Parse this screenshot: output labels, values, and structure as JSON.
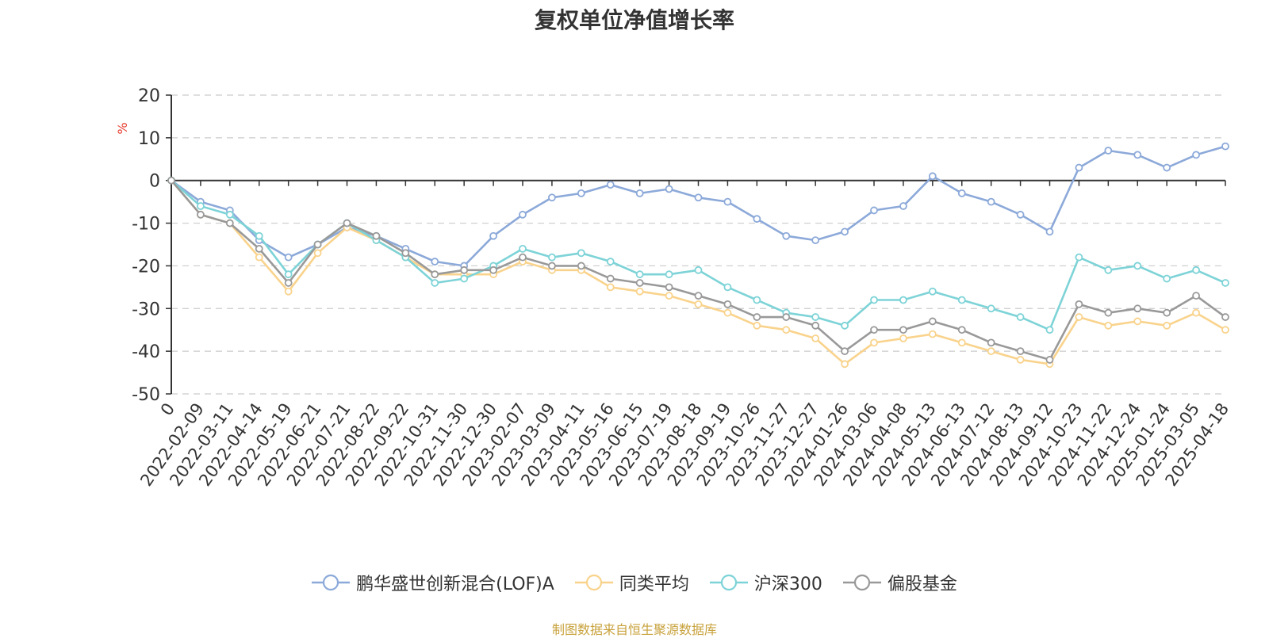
{
  "title": "复权单位净值增长率",
  "source_note": "制图数据来自恒生聚源数据库",
  "chart_data": {
    "type": "line",
    "title": "复权单位净值增长率",
    "ylabel": "%",
    "ylim": [
      -50,
      20
    ],
    "yticks": [
      20,
      10,
      0,
      -10,
      -20,
      -30,
      -40,
      -50
    ],
    "grid": true,
    "legend_position": "bottom",
    "x_ticks": [
      "0",
      "2022-02-09",
      "2022-03-11",
      "2022-04-14",
      "2022-05-19",
      "2022-06-21",
      "2022-07-21",
      "2022-08-22",
      "2022-09-22",
      "2022-10-31",
      "2022-11-30",
      "2022-12-30",
      "2023-02-07",
      "2023-03-09",
      "2023-04-11",
      "2023-05-16",
      "2023-06-15",
      "2023-07-19",
      "2023-08-18",
      "2023-09-19",
      "2023-10-26",
      "2023-11-27",
      "2023-12-27",
      "2024-01-26",
      "2024-03-06",
      "2024-04-08",
      "2024-05-13",
      "2024-06-13",
      "2024-07-12",
      "2024-08-13",
      "2024-09-12",
      "2024-10-23",
      "2024-11-22",
      "2024-12-24",
      "2025-01-24",
      "2025-03-05",
      "2025-04-18"
    ],
    "series": [
      {
        "name": "鹏华盛世创新混合(LOF)A",
        "color": "#8ca9d9",
        "values": [
          0,
          -5,
          -7,
          -14,
          -18,
          -15,
          -11,
          -13,
          -16,
          -19,
          -20,
          -13,
          -8,
          -4,
          -3,
          -1,
          -3,
          -2,
          -4,
          -5,
          -9,
          -13,
          -14,
          -12,
          -7,
          -6,
          1,
          -3,
          -5,
          -8,
          -12,
          3,
          7,
          6,
          3,
          6,
          8
        ]
      },
      {
        "name": "同类平均",
        "color": "#f9d38c",
        "values": [
          0,
          -8,
          -10,
          -18,
          -26,
          -17,
          -11,
          -14,
          -18,
          -22,
          -22,
          -22,
          -19,
          -21,
          -21,
          -25,
          -26,
          -27,
          -29,
          -31,
          -34,
          -35,
          -37,
          -43,
          -38,
          -37,
          -36,
          -38,
          -40,
          -42,
          -43,
          -32,
          -34,
          -33,
          -34,
          -31,
          -35
        ]
      },
      {
        "name": "沪深300",
        "color": "#7dd3d7",
        "values": [
          0,
          -6,
          -8,
          -13,
          -22,
          -15,
          -10,
          -14,
          -18,
          -24,
          -23,
          -20,
          -16,
          -18,
          -17,
          -19,
          -22,
          -22,
          -21,
          -25,
          -28,
          -31,
          -32,
          -34,
          -28,
          -28,
          -26,
          -28,
          -30,
          -32,
          -35,
          -18,
          -21,
          -20,
          -23,
          -21,
          -24
        ]
      },
      {
        "name": "偏股基金",
        "color": "#999999",
        "values": [
          0,
          -8,
          -10,
          -16,
          -24,
          -15,
          -10,
          -13,
          -17,
          -22,
          -21,
          -21,
          -18,
          -20,
          -20,
          -23,
          -24,
          -25,
          -27,
          -29,
          -32,
          -32,
          -34,
          -40,
          -35,
          -35,
          -33,
          -35,
          -38,
          -40,
          -42,
          -29,
          -31,
          -30,
          -31,
          -27,
          -32
        ]
      }
    ]
  }
}
